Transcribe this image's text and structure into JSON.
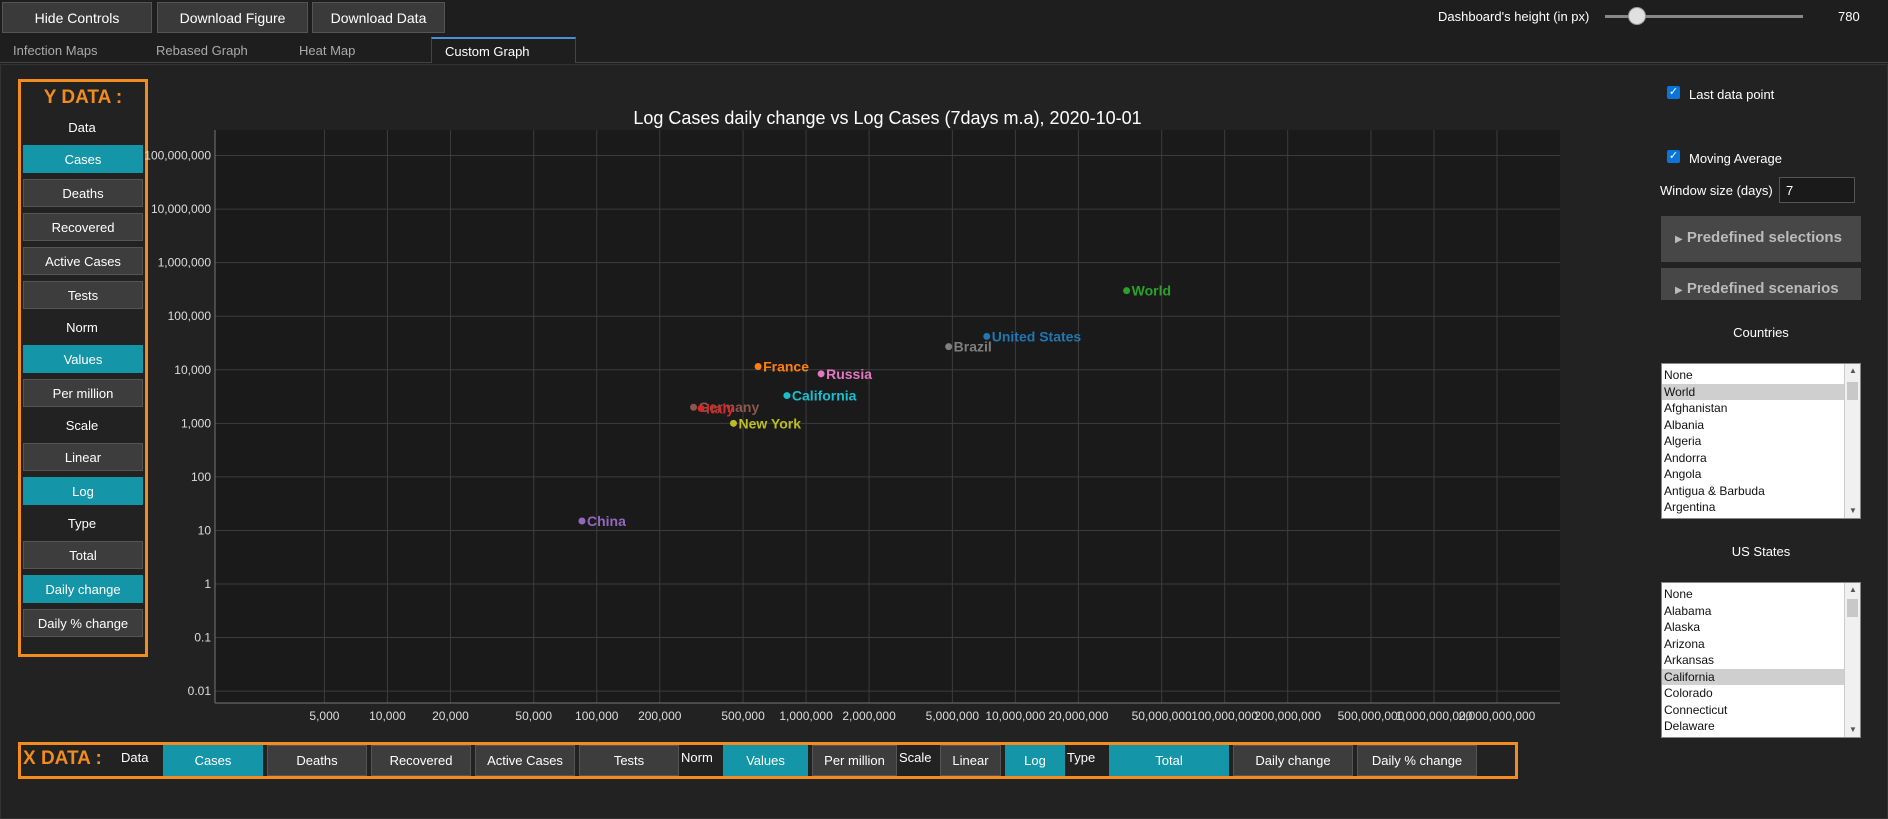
{
  "toolbar": {
    "hide_controls": "Hide Controls",
    "download_figure": "Download Figure",
    "download_data": "Download Data",
    "height_label": "Dashboard's height (in px)",
    "height_value": "780",
    "height_fraction": 0.16
  },
  "tabs": [
    "Infection Maps",
    "Rebased Graph",
    "Heat Map",
    "Custom Graph"
  ],
  "active_tab": "Custom Graph",
  "y_data": {
    "title": "Y DATA :",
    "data_label": "Data",
    "data_options": [
      "Cases",
      "Deaths",
      "Recovered",
      "Active Cases",
      "Tests"
    ],
    "data_selected": "Cases",
    "norm_label": "Norm",
    "norm_options": [
      "Values",
      "Per million"
    ],
    "norm_selected": "Values",
    "scale_label": "Scale",
    "scale_options": [
      "Linear",
      "Log"
    ],
    "scale_selected": "Log",
    "type_label": "Type",
    "type_options": [
      "Total",
      "Daily change",
      "Daily % change"
    ],
    "type_selected": "Daily change"
  },
  "x_data": {
    "title": "X DATA :",
    "data_label": "Data",
    "data_options": [
      "Cases",
      "Deaths",
      "Recovered",
      "Active Cases",
      "Tests"
    ],
    "data_selected": "Cases",
    "norm_label": "Norm",
    "norm_options": [
      "Values",
      "Per million"
    ],
    "norm_selected": "Values",
    "scale_label": "Scale",
    "scale_options": [
      "Linear",
      "Log"
    ],
    "scale_selected": "Log",
    "type_label": "Type",
    "type_options": [
      "Total",
      "Daily change",
      "Daily % change"
    ],
    "type_selected": "Total"
  },
  "right_panel": {
    "last_data_point": "Last data point",
    "last_data_point_checked": true,
    "moving_average": "Moving Average",
    "moving_average_checked": true,
    "window_label": "Window size (days)",
    "window_value": "7",
    "predefined_selections": "Predefined selections",
    "predefined_scenarios": "Predefined scenarios",
    "countries_label": "Countries",
    "countries": [
      "None",
      "World",
      "Afghanistan",
      "Albania",
      "Algeria",
      "Andorra",
      "Angola",
      "Antigua & Barbuda",
      "Argentina"
    ],
    "countries_selected": "World",
    "us_states_label": "US States",
    "us_states": [
      "None",
      "Alabama",
      "Alaska",
      "Arizona",
      "Arkansas",
      "California",
      "Colorado",
      "Connecticut",
      "Delaware"
    ],
    "us_states_selected": "California"
  },
  "colors": {
    "accent_orange": "#f28c1e",
    "active_teal": "#1496a8",
    "plot_bg": "#1a1a1a"
  },
  "chart_data": {
    "type": "scatter",
    "title": "Log Cases daily change vs Log Cases (7days m.a), 2020-10-01",
    "xscale": "log",
    "yscale": "log",
    "xlim": [
      1500,
      4000000000
    ],
    "ylim": [
      0.006,
      300000000
    ],
    "x_ticks": [
      5000,
      10000,
      20000,
      50000,
      100000,
      200000,
      500000,
      1000000,
      2000000,
      5000000,
      10000000,
      20000000,
      50000000,
      100000000,
      200000000,
      500000000,
      1000000000,
      2000000000
    ],
    "x_tick_labels": [
      "5,000",
      "10,000",
      "20,000",
      "50,000",
      "100,000",
      "200,000",
      "500,000",
      "1,000,000",
      "2,000,000",
      "5,000,000",
      "10,000,000",
      "20,000,000",
      "50,000,000",
      "100,000,000",
      "200,000,000",
      "500,000,000",
      "1,000,000,000",
      "2,000,000,000"
    ],
    "y_ticks": [
      0.01,
      0.1,
      1,
      10,
      100,
      1000,
      10000,
      100000,
      1000000,
      10000000,
      100000000
    ],
    "y_tick_labels": [
      "0.01",
      "0.1",
      "1",
      "10",
      "100",
      "1,000",
      "10,000",
      "100,000",
      "1,000,000",
      "10,000,000",
      "100,000,000"
    ],
    "grid": true,
    "points": [
      {
        "name": "World",
        "x": 34000000,
        "y": 300000,
        "color": "#2ca02c"
      },
      {
        "name": "United States",
        "x": 7300000,
        "y": 42000,
        "color": "#1f77b4"
      },
      {
        "name": "Brazil",
        "x": 4800000,
        "y": 27000,
        "color": "#7f7f7f"
      },
      {
        "name": "France",
        "x": 590000,
        "y": 11500,
        "color": "#ff7f0e"
      },
      {
        "name": "Russia",
        "x": 1180000,
        "y": 8400,
        "color": "#e377c2"
      },
      {
        "name": "California",
        "x": 810000,
        "y": 3300,
        "color": "#17becf"
      },
      {
        "name": "Germany",
        "x": 290000,
        "y": 2000,
        "color": "#8c564b"
      },
      {
        "name": "Italy",
        "x": 315000,
        "y": 1900,
        "color": "#d62728"
      },
      {
        "name": "New York",
        "x": 450000,
        "y": 1000,
        "color": "#bcbd22"
      },
      {
        "name": "China",
        "x": 85000,
        "y": 15,
        "color": "#9467bd"
      }
    ]
  }
}
